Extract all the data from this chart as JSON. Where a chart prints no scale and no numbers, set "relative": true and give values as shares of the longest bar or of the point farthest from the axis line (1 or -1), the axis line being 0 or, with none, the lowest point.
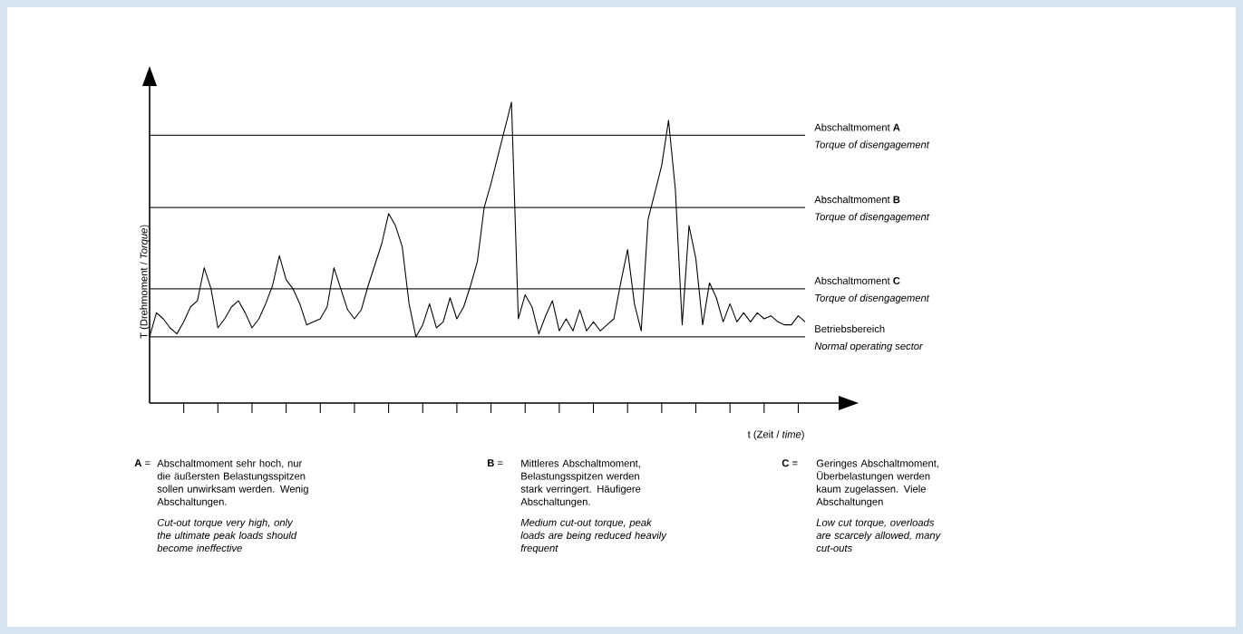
{
  "chart_data": {
    "type": "line",
    "relative": true,
    "color": "#000000",
    "xlabel": "t (Zeit / *time*)",
    "ylabel": "T (Drehmoment / *Torque*)",
    "categories": [
      null,
      null,
      null,
      null,
      null,
      null,
      null,
      null,
      null,
      null,
      null,
      null,
      null,
      null,
      null,
      null,
      null,
      null,
      null,
      null,
      null,
      null,
      null,
      null,
      null,
      null,
      null,
      null,
      null,
      null,
      null,
      null,
      null,
      null,
      null,
      null,
      null,
      null,
      null,
      null,
      null,
      null,
      null,
      null,
      null,
      null,
      null,
      null,
      null,
      null,
      null,
      null,
      null,
      null,
      null,
      null,
      null,
      null,
      null,
      null,
      null,
      null,
      null,
      null,
      null,
      null,
      null,
      null,
      null,
      null,
      null,
      null,
      null,
      null,
      null,
      null,
      null,
      null,
      null,
      null,
      null,
      null,
      null,
      null,
      null,
      null,
      null,
      null,
      null,
      null,
      null,
      null,
      null,
      null,
      null,
      null,
      null
    ],
    "values": [
      0.22,
      0.3,
      0.28,
      0.25,
      0.23,
      0.27,
      0.32,
      0.34,
      0.45,
      0.38,
      0.25,
      0.28,
      0.32,
      0.34,
      0.3,
      0.25,
      0.28,
      0.33,
      0.39,
      0.49,
      0.41,
      0.38,
      0.33,
      0.26,
      0.27,
      0.28,
      0.32,
      0.45,
      0.38,
      0.31,
      0.28,
      0.31,
      0.39,
      0.46,
      0.53,
      0.63,
      0.59,
      0.52,
      0.33,
      0.22,
      0.26,
      0.33,
      0.25,
      0.27,
      0.35,
      0.28,
      0.32,
      0.39,
      0.47,
      0.65,
      0.73,
      0.82,
      0.91,
      1.0,
      0.28,
      0.36,
      0.32,
      0.23,
      0.29,
      0.34,
      0.24,
      0.28,
      0.24,
      0.31,
      0.24,
      0.27,
      0.24,
      0.26,
      0.28,
      0.4,
      0.51,
      0.33,
      0.24,
      0.61,
      0.7,
      0.79,
      0.94,
      0.71,
      0.26,
      0.59,
      0.48,
      0.26,
      0.4,
      0.35,
      0.27,
      0.33,
      0.27,
      0.3,
      0.27,
      0.3,
      0.28,
      0.29,
      0.27,
      0.26,
      0.26,
      0.29,
      0.27
    ],
    "ref_lines": [
      {
        "axis": "y",
        "value": 0.89,
        "label": "Abschaltmoment **A**",
        "color": "#262626"
      },
      {
        "axis": "y",
        "value": 0.65,
        "label": "Abschaltmoment **B**",
        "color": "#262626"
      },
      {
        "axis": "y",
        "value": 0.38,
        "label": "Abschaltmoment **C**",
        "color": "#262626"
      },
      {
        "axis": "y",
        "value": 0.22,
        "label": "Betriebsbereich",
        "color": "#262626"
      }
    ],
    "annotations": [
      "Torque of disengagement",
      "Torque of disengagement",
      "Torque of disengagement",
      "Normal operating sector",
      "**A** =",
      "Abschaltmoment sehr hoch, nur die äußersten Belastungsspitzen sollen unwirksam werden. Wenig Abschaltungen.",
      "Cut-out torque very high, only the ultimate peak loads should become ineffective",
      "**B** =",
      "Mittleres Abschaltmoment, Belastungsspitzen werden stark verringert. Häufigere Abschaltungen.",
      "Medium cut-out torque, peak loads are being reduced heavily frequent",
      "**C** =",
      "Geringes Abschaltmoment, Überbelastungen werden kaum zugelassen. Viele Abschaltungen",
      "Low cut torque, overloads are scarcely allowed, many cut-outs"
    ]
  }
}
